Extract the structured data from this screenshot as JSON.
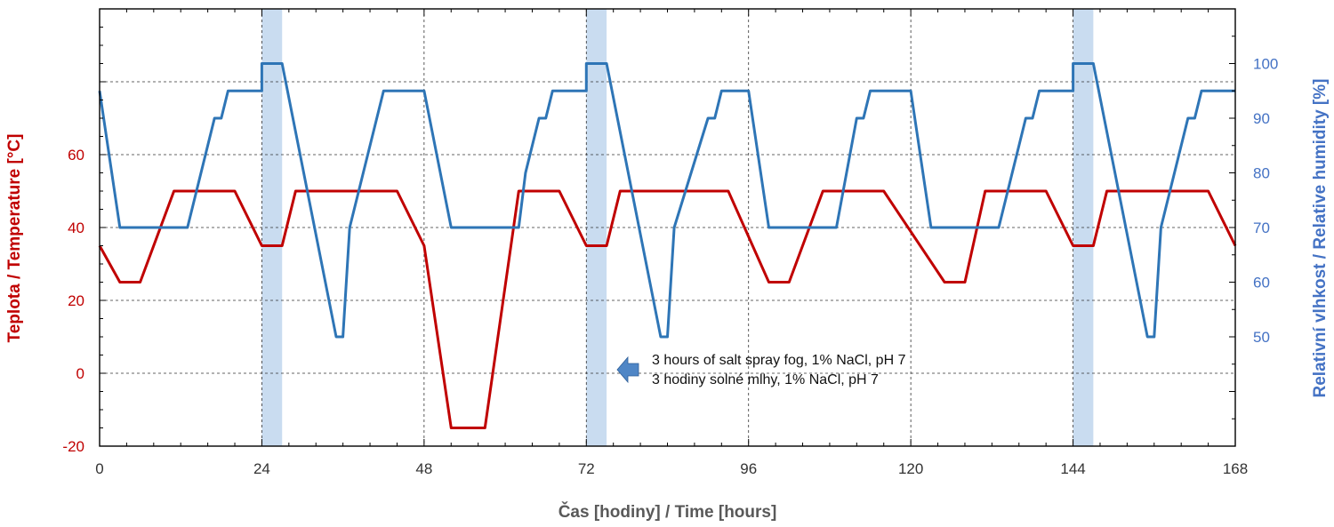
{
  "chart_data": {
    "type": "line",
    "xlabel": "Čas [hodiny] / Time [hours]",
    "ylabel_left": "Teplota / Temperature [°C]",
    "ylabel_right": "Relativní vlhkost / Relative humidity [%]",
    "xlim": [
      0,
      168
    ],
    "ylim_left": [
      -20,
      100
    ],
    "ylim_right": [
      30,
      110
    ],
    "x_ticks": [
      0,
      24,
      48,
      72,
      96,
      120,
      144,
      168
    ],
    "left_ticks": [
      -20,
      0,
      20,
      40,
      60
    ],
    "right_ticks": [
      50,
      60,
      70,
      80,
      90,
      100
    ],
    "grid": true,
    "colors": {
      "temperature": "#c00000",
      "humidity": "#2e75b6",
      "left_axis_text": "#c00000",
      "right_axis_text": "#4472c4",
      "salt_spray_band": "#c9dcf0",
      "arrow": "#4f86c6"
    },
    "salt_spray_periods": [
      [
        24,
        27
      ],
      [
        72,
        75
      ],
      [
        144,
        147
      ]
    ],
    "series": [
      {
        "axis": "left",
        "x": [
          0,
          3,
          6,
          11,
          20,
          24,
          27,
          29,
          38,
          44,
          48,
          52,
          57,
          62,
          68,
          72,
          75,
          77,
          86,
          93,
          99,
          102,
          107,
          116,
          125,
          128,
          131,
          140,
          144,
          147,
          149,
          158,
          164,
          168
        ],
        "values": [
          35,
          25,
          25,
          50,
          50,
          35,
          35,
          50,
          50,
          50,
          35,
          -15,
          -15,
          50,
          50,
          35,
          35,
          50,
          50,
          50,
          25,
          25,
          50,
          50,
          25,
          25,
          50,
          50,
          35,
          35,
          50,
          50,
          50,
          35
        ]
      },
      {
        "axis": "right",
        "x": [
          0,
          3,
          13,
          17,
          18,
          19,
          24,
          24,
          27,
          35,
          36,
          37,
          42,
          48,
          52,
          62,
          63,
          65,
          66,
          67,
          72,
          72,
          75,
          83,
          84,
          85,
          90,
          91,
          92,
          96,
          99,
          109,
          112,
          113,
          114,
          115,
          120,
          123,
          133,
          137,
          138,
          139,
          144,
          144,
          147,
          155,
          156,
          157,
          161,
          162,
          163,
          168
        ],
        "values": [
          95,
          70,
          70,
          90,
          90,
          95,
          95,
          100,
          100,
          50,
          50,
          70,
          95,
          95,
          70,
          70,
          80,
          90,
          90,
          95,
          95,
          100,
          100,
          50,
          50,
          70,
          90,
          90,
          95,
          95,
          70,
          70,
          90,
          90,
          95,
          95,
          95,
          70,
          70,
          90,
          90,
          95,
          95,
          100,
          100,
          50,
          50,
          70,
          90,
          90,
          95,
          95
        ]
      }
    ],
    "annotation": {
      "line1": "3 hours of salt spray fog, 1% NaCl, pH 7",
      "line2": "3 hodiny solné mlhy, 1% NaCl, pH 7"
    }
  }
}
